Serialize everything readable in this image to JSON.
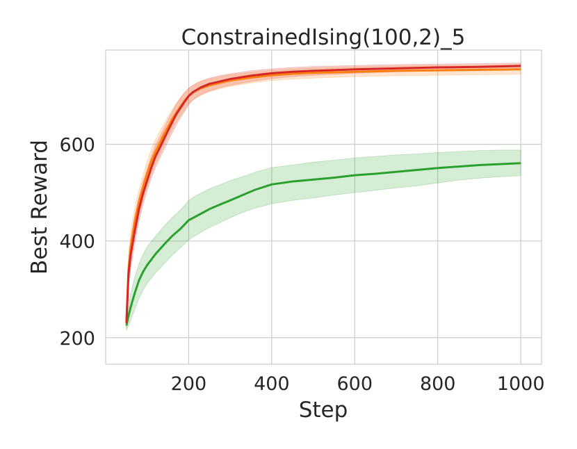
{
  "chart_data": {
    "type": "line",
    "title": "ConstrainedIsing(100,2)_5",
    "xlabel": "Step",
    "ylabel": "Best Reward",
    "xlim": [
      0,
      1050
    ],
    "ylim": [
      145,
      795
    ],
    "xticks": [
      200,
      400,
      600,
      800,
      1000
    ],
    "yticks": [
      200,
      400,
      600
    ],
    "grid": true,
    "legend": "none",
    "series": [
      {
        "color": "#d62728",
        "x": [
          50,
          55,
          60,
          70,
          80,
          90,
          100,
          110,
          120,
          130,
          140,
          150,
          160,
          170,
          180,
          190,
          200,
          210,
          220,
          230,
          250,
          275,
          300,
          350,
          400,
          450,
          500,
          600,
          700,
          800,
          900,
          1000
        ],
        "y": [
          230,
          330,
          370,
          420,
          465,
          498,
          525,
          552,
          575,
          592,
          610,
          628,
          645,
          662,
          675,
          688,
          700,
          708,
          713,
          718,
          725,
          730,
          735,
          742,
          747,
          750,
          752,
          755,
          757,
          759,
          760,
          762
        ],
        "lower": [
          220,
          305,
          340,
          395,
          440,
          475,
          505,
          530,
          552,
          570,
          588,
          606,
          623,
          640,
          655,
          668,
          682,
          692,
          698,
          703,
          710,
          717,
          722,
          730,
          736,
          740,
          743,
          747,
          750,
          752,
          754,
          756
        ],
        "upper": [
          240,
          355,
          400,
          450,
          490,
          522,
          548,
          575,
          598,
          615,
          633,
          650,
          667,
          683,
          696,
          707,
          716,
          722,
          727,
          731,
          737,
          742,
          746,
          752,
          756,
          759,
          761,
          763,
          765,
          766,
          767,
          768
        ]
      },
      {
        "color": "#ff7f0e",
        "x": [
          50,
          55,
          60,
          70,
          80,
          90,
          100,
          110,
          120,
          130,
          140,
          150,
          160,
          170,
          180,
          190,
          200,
          210,
          220,
          230,
          250,
          275,
          300,
          350,
          400,
          450,
          500,
          600,
          700,
          800,
          900,
          1000
        ],
        "y": [
          235,
          340,
          385,
          440,
          480,
          510,
          540,
          565,
          585,
          602,
          620,
          636,
          652,
          665,
          678,
          690,
          700,
          707,
          712,
          716,
          722,
          727,
          732,
          738,
          743,
          746,
          748,
          750,
          752,
          753,
          754,
          755
        ],
        "lower": [
          215,
          310,
          355,
          410,
          452,
          483,
          512,
          538,
          560,
          578,
          597,
          614,
          631,
          646,
          659,
          672,
          683,
          691,
          697,
          702,
          709,
          715,
          720,
          727,
          732,
          735,
          737,
          740,
          742,
          743,
          744,
          745
        ],
        "upper": [
          255,
          370,
          415,
          468,
          505,
          535,
          565,
          590,
          610,
          626,
          642,
          657,
          671,
          684,
          696,
          707,
          716,
          722,
          726,
          730,
          735,
          740,
          744,
          749,
          753,
          756,
          758,
          760,
          762,
          763,
          764,
          765
        ]
      },
      {
        "color": "#2ca02c",
        "x": [
          50,
          55,
          60,
          70,
          80,
          90,
          100,
          120,
          140,
          160,
          180,
          200,
          220,
          250,
          280,
          300,
          330,
          360,
          400,
          450,
          500,
          550,
          600,
          650,
          700,
          750,
          800,
          850,
          900,
          950,
          1000
        ],
        "y": [
          225,
          245,
          262,
          292,
          318,
          336,
          350,
          373,
          392,
          410,
          425,
          443,
          452,
          466,
          477,
          484,
          495,
          506,
          517,
          523,
          527,
          531,
          536,
          539,
          543,
          547,
          551,
          554,
          557,
          559,
          561
        ],
        "lower": [
          215,
          225,
          235,
          258,
          280,
          298,
          312,
          334,
          352,
          370,
          386,
          402,
          413,
          428,
          440,
          448,
          459,
          468,
          477,
          484,
          489,
          495,
          500,
          505,
          510,
          514,
          520,
          526,
          530,
          533,
          535
        ],
        "upper": [
          235,
          262,
          290,
          325,
          352,
          372,
          388,
          410,
          430,
          448,
          464,
          484,
          495,
          508,
          518,
          525,
          533,
          542,
          552,
          557,
          563,
          567,
          572,
          575,
          578,
          580,
          583,
          585,
          587,
          588,
          588
        ]
      }
    ]
  }
}
